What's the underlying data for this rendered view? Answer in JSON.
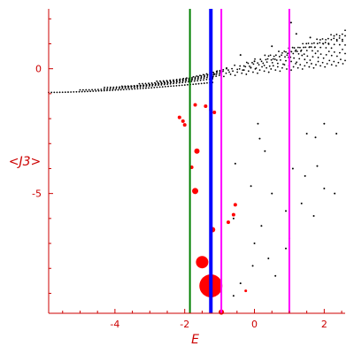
{
  "chart_data": {
    "type": "scatter",
    "xlabel": "E",
    "ylabel": "<J3>",
    "xlim": [
      -5.9,
      2.6
    ],
    "ylim": [
      -9.8,
      2.4
    ],
    "x_ticks": [
      -4,
      -2,
      0,
      2
    ],
    "y_ticks": [
      0,
      -5
    ],
    "x_tick_labels": [
      "-4",
      "-2",
      "0",
      "2"
    ],
    "y_tick_labels": [
      "0",
      "-5"
    ],
    "grid": false,
    "colors": {
      "axis": "#cc0000",
      "dots": "#000000",
      "markers": "#ff0000",
      "green": "#008000",
      "blue": "#0000ff",
      "magenta": "#ff00ff"
    },
    "vertical_lines": [
      {
        "x": -1.85,
        "color": "#008000",
        "style": "thin"
      },
      {
        "x": -1.25,
        "color": "#0000ff",
        "style": "thick"
      },
      {
        "x": -0.95,
        "color": "#ff00ff",
        "style": "thin"
      },
      {
        "x": 1.0,
        "color": "#ff00ff",
        "style": "thin"
      }
    ],
    "branches": [
      {
        "x_start": -5.9,
        "y_start": -0.95,
        "x_end": -1.2,
        "y_end": -0.55,
        "count": 60
      },
      {
        "x_start": -5.0,
        "y_start": -0.85,
        "x_end": -1.2,
        "y_end": -0.4,
        "count": 45
      },
      {
        "x_start": -4.3,
        "y_start": -0.75,
        "x_end": -1.1,
        "y_end": -0.3,
        "count": 38
      },
      {
        "x_start": -3.8,
        "y_start": -0.7,
        "x_end": -1.0,
        "y_end": -0.2,
        "count": 33
      },
      {
        "x_start": -3.3,
        "y_start": -0.6,
        "x_end": -0.9,
        "y_end": -0.1,
        "count": 28
      },
      {
        "x_start": -2.8,
        "y_start": -0.5,
        "x_end": -0.8,
        "y_end": 0.0,
        "count": 22
      }
    ],
    "cloud_rows": [
      {
        "x_start": -1.2,
        "x_end": 2.6,
        "y_start": -0.35,
        "y_end": 0.15,
        "count": 60
      },
      {
        "x_start": -0.8,
        "x_end": 2.6,
        "y_start": -0.15,
        "y_end": 0.55,
        "count": 45
      },
      {
        "x_start": -0.3,
        "x_end": 2.6,
        "y_start": 0.05,
        "y_end": 0.95,
        "count": 38
      },
      {
        "x_start": 0.3,
        "x_end": 2.6,
        "y_start": 0.3,
        "y_end": 1.2,
        "count": 30
      },
      {
        "x_start": 0.9,
        "x_end": 2.6,
        "y_start": 0.55,
        "y_end": 1.3,
        "count": 22
      }
    ],
    "scattered_points": [
      [
        1.05,
        1.85
      ],
      [
        1.2,
        1.4
      ],
      [
        1.6,
        1.25
      ],
      [
        0.5,
        0.9
      ],
      [
        0.0,
        0.3
      ],
      [
        -0.4,
        0.55
      ],
      [
        0.1,
        -2.2
      ],
      [
        0.15,
        -2.8
      ],
      [
        1.5,
        -2.6
      ],
      [
        1.75,
        -2.75
      ],
      [
        2.0,
        -2.2
      ],
      [
        2.35,
        -2.6
      ],
      [
        1.1,
        -4.0
      ],
      [
        1.45,
        -4.3
      ],
      [
        2.0,
        -4.8
      ],
      [
        2.3,
        -5.0
      ],
      [
        -0.1,
        -4.7
      ],
      [
        0.5,
        -5.0
      ],
      [
        0.9,
        -5.7
      ],
      [
        1.35,
        -5.4
      ],
      [
        1.7,
        -5.9
      ],
      [
        -0.6,
        -6.0
      ],
      [
        0.2,
        -6.3
      ],
      [
        0.0,
        -7.0
      ],
      [
        0.9,
        -7.2
      ],
      [
        1.0,
        -6.8
      ],
      [
        -0.05,
        -7.9
      ],
      [
        0.4,
        -7.6
      ],
      [
        0.6,
        -8.3
      ],
      [
        -0.4,
        -8.6
      ],
      [
        -0.6,
        -9.1
      ],
      [
        1.8,
        -3.9
      ],
      [
        0.3,
        -3.3
      ],
      [
        -0.55,
        -3.8
      ]
    ],
    "red_markers": [
      {
        "x": -2.15,
        "y": -1.95,
        "size": 2
      },
      {
        "x": -2.05,
        "y": -2.1,
        "size": 2
      },
      {
        "x": -2.0,
        "y": -2.25,
        "size": 2
      },
      {
        "x": -1.7,
        "y": -1.45,
        "size": 2
      },
      {
        "x": -1.4,
        "y": -1.5,
        "size": 2
      },
      {
        "x": -1.25,
        "y": -1.65,
        "size": 2
      },
      {
        "x": -1.15,
        "y": -1.75,
        "size": 2
      },
      {
        "x": -1.65,
        "y": -3.3,
        "size": 3
      },
      {
        "x": -1.8,
        "y": -3.95,
        "size": 2
      },
      {
        "x": -1.7,
        "y": -4.9,
        "size": 3.5
      },
      {
        "x": -0.55,
        "y": -5.45,
        "size": 2
      },
      {
        "x": -0.6,
        "y": -5.85,
        "size": 2
      },
      {
        "x": -0.75,
        "y": -6.15,
        "size": 2
      },
      {
        "x": -1.2,
        "y": -6.45,
        "size": 3
      },
      {
        "x": -1.5,
        "y": -7.75,
        "size": 7
      },
      {
        "x": -1.25,
        "y": -8.7,
        "size": 13
      },
      {
        "x": -0.25,
        "y": -8.9,
        "size": 1.5
      },
      {
        "x": -0.95,
        "y": -9.75,
        "size": 3
      }
    ]
  }
}
